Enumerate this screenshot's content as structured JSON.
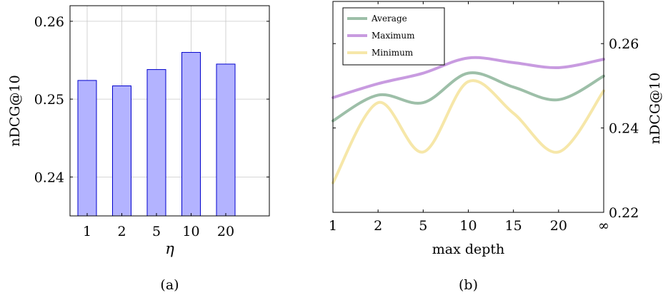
{
  "chart_data": [
    {
      "type": "bar",
      "caption": "(a)",
      "xlabel": "η",
      "ylabel": "nDCG@10",
      "categories": [
        "1",
        "2",
        "5",
        "10",
        "20"
      ],
      "values": [
        0.2524,
        0.2517,
        0.2538,
        0.256,
        0.2545
      ],
      "ylim": [
        0.235,
        0.262
      ],
      "yticks": [
        0.24,
        0.25,
        0.26
      ],
      "ytick_labels": [
        "0.24",
        "0.25",
        "0.26"
      ],
      "grid": true,
      "colors": {
        "fill": "#b3b3ff",
        "stroke": "#0000cc"
      }
    },
    {
      "type": "line",
      "caption": "(b)",
      "xlabel": "max depth",
      "ylabel": "nDCG@10",
      "x": [
        "1",
        "2",
        "5",
        "10",
        "15",
        "20",
        "∞"
      ],
      "ylim": [
        0.22,
        0.27
      ],
      "yticks": [
        0.22,
        0.24,
        0.26
      ],
      "ytick_labels": [
        "0.22",
        "0.24",
        "0.26"
      ],
      "yaxis_side": "right",
      "grid": false,
      "legend": "top-left",
      "series": [
        {
          "name": "Average",
          "color": "#9dbfa8",
          "values": [
            0.2417,
            0.2478,
            0.246,
            0.253,
            0.2497,
            0.2467,
            0.2523
          ]
        },
        {
          "name": "Maximum",
          "color": "#c89be0",
          "values": [
            0.2472,
            0.2505,
            0.253,
            0.2566,
            0.2555,
            0.2543,
            0.2563
          ]
        },
        {
          "name": "Minimum",
          "color": "#f6e7a9",
          "values": [
            0.227,
            0.246,
            0.2343,
            0.251,
            0.2435,
            0.2343,
            0.2488
          ]
        }
      ]
    }
  ]
}
